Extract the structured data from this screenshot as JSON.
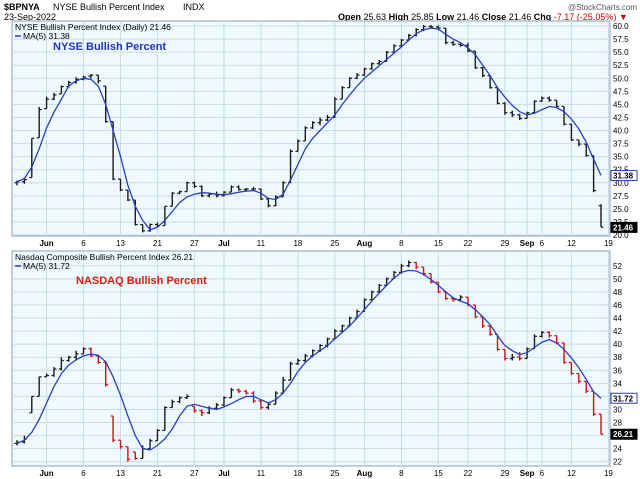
{
  "header": {
    "symbol": "$BPNYA",
    "name": "NYSE Bullish Percent Index",
    "exchange": "INDX",
    "date": "23-Sep-2022",
    "open_label": "Open",
    "open": "25.63",
    "high_label": "High",
    "high": "25.85",
    "low_label": "Low",
    "low": "21.46",
    "close_label": "Close",
    "close": "21.46",
    "chg_label": "Chg",
    "chg": "-7.17 (-25.05%)",
    "arrow": "▼",
    "watermark": "@StockCharts.com"
  },
  "colors": {
    "panel_bg": "#eefaff",
    "grid": "#c9dbe6",
    "border": "#8aa0b0",
    "ma_line": "#2b3fbf",
    "up_bar": "#1a1a1a",
    "down_bar_panel1": "#1a1a1a",
    "down_bar_panel2": "#cc1111",
    "title_blue": "#1d33c8",
    "title_red": "#d81f0c",
    "neg": "#cc0000"
  },
  "chart_data": [
    {
      "type": "ohlc",
      "title": "NYSE Bullish Percent",
      "legend": [
        "NYSE Bullish Percent Index (Daily) 21.46",
        "MA(5) 31.38"
      ],
      "x_tick_labels": [
        "Jun",
        "6",
        "13",
        "21",
        "27",
        "Jul",
        "11",
        "18",
        "25",
        "Aug",
        "8",
        "15",
        "22",
        "29",
        "Sep",
        "6",
        "12",
        "19"
      ],
      "ylim": [
        20,
        60
      ],
      "y_ticks": [
        "20.0",
        "22.5",
        "25.0",
        "27.5",
        "30.0",
        "32.5",
        "35.0",
        "37.5",
        "40.0",
        "42.5",
        "45.0",
        "47.5",
        "50.0",
        "52.5",
        "55.0",
        "57.5",
        "60.0"
      ],
      "last_value_tags": [
        {
          "label": "31.38",
          "value": 31.38,
          "style": "outline"
        },
        {
          "label": "21.46",
          "value": 21.46,
          "style": "filled"
        }
      ],
      "bars": [
        [
          30.0,
          30.4,
          29.5,
          30.2
        ],
        [
          30.2,
          31.0,
          29.8,
          30.6
        ],
        [
          31.0,
          38.5,
          31.0,
          38.5
        ],
        [
          38.6,
          44.5,
          38.6,
          44.0
        ],
        [
          44.2,
          46.5,
          44.2,
          46.0
        ],
        [
          46.0,
          47.2,
          45.8,
          46.8
        ],
        [
          47.0,
          48.6,
          47.0,
          48.4
        ],
        [
          48.4,
          49.5,
          48.2,
          49.2
        ],
        [
          49.2,
          50.2,
          49.0,
          49.8
        ],
        [
          49.8,
          50.5,
          49.6,
          50.2
        ],
        [
          50.4,
          50.8,
          50.0,
          50.6
        ],
        [
          50.6,
          50.6,
          49.0,
          49.5
        ],
        [
          48.5,
          48.5,
          41.5,
          41.7
        ],
        [
          41.7,
          41.7,
          30.5,
          30.7
        ],
        [
          30.7,
          30.7,
          28.4,
          28.6
        ],
        [
          28.6,
          28.6,
          26.5,
          26.7
        ],
        [
          26.7,
          26.7,
          21.8,
          22.0
        ],
        [
          22.0,
          22.0,
          20.5,
          20.8
        ],
        [
          20.8,
          22.2,
          20.6,
          22.0
        ],
        [
          22.0,
          22.4,
          21.5,
          21.8
        ],
        [
          21.8,
          25.5,
          21.8,
          25.5
        ],
        [
          25.5,
          28.2,
          25.5,
          28.0
        ],
        [
          28.0,
          28.5,
          27.8,
          28.3
        ],
        [
          28.3,
          30.2,
          28.3,
          30.0
        ],
        [
          30.0,
          30.2,
          29.0,
          29.3
        ],
        [
          29.3,
          29.5,
          27.3,
          27.5
        ],
        [
          27.5,
          28.0,
          27.2,
          27.8
        ],
        [
          27.8,
          28.3,
          27.2,
          27.5
        ],
        [
          27.5,
          28.4,
          27.4,
          28.2
        ],
        [
          28.2,
          29.5,
          28.2,
          29.2
        ],
        [
          29.2,
          29.5,
          28.5,
          28.7
        ],
        [
          28.7,
          29.0,
          28.3,
          28.8
        ],
        [
          28.8,
          29.2,
          28.5,
          28.8
        ],
        [
          28.8,
          28.9,
          26.7,
          26.9
        ],
        [
          26.9,
          27.0,
          25.3,
          25.6
        ],
        [
          25.6,
          27.6,
          25.5,
          27.3
        ],
        [
          27.3,
          30.3,
          27.3,
          30.0
        ],
        [
          30.0,
          36.4,
          30.0,
          36.0
        ],
        [
          36.0,
          38.3,
          36.0,
          38.0
        ],
        [
          38.0,
          40.8,
          38.0,
          40.5
        ],
        [
          40.5,
          41.8,
          40.3,
          41.5
        ],
        [
          41.5,
          42.5,
          41.0,
          42.0
        ],
        [
          42.0,
          43.0,
          41.8,
          42.5
        ],
        [
          42.5,
          46.4,
          42.5,
          46.0
        ],
        [
          46.0,
          48.5,
          46.0,
          48.2
        ],
        [
          48.2,
          50.2,
          48.2,
          50.0
        ],
        [
          50.0,
          51.0,
          49.8,
          50.6
        ],
        [
          50.6,
          52.0,
          50.4,
          51.8
        ],
        [
          51.8,
          53.0,
          51.6,
          52.8
        ],
        [
          52.8,
          53.5,
          52.6,
          53.2
        ],
        [
          53.2,
          55.2,
          53.2,
          55.0
        ],
        [
          55.0,
          56.5,
          55.0,
          56.2
        ],
        [
          56.2,
          57.5,
          56.2,
          57.3
        ],
        [
          57.3,
          58.5,
          57.1,
          58.2
        ],
        [
          58.2,
          59.6,
          58.0,
          59.3
        ],
        [
          59.3,
          60.2,
          59.0,
          59.9
        ],
        [
          59.9,
          60.2,
          59.5,
          59.8
        ],
        [
          59.8,
          60.1,
          59.2,
          59.6
        ],
        [
          59.6,
          59.6,
          56.5,
          56.8
        ],
        [
          56.8,
          57.2,
          56.2,
          56.5
        ],
        [
          56.5,
          56.8,
          56.0,
          56.3
        ],
        [
          56.3,
          56.8,
          55.0,
          55.2
        ],
        [
          55.2,
          55.2,
          51.8,
          52.0
        ],
        [
          52.0,
          52.2,
          50.2,
          50.5
        ],
        [
          50.5,
          50.6,
          48.0,
          48.2
        ],
        [
          48.2,
          48.2,
          45.0,
          45.2
        ],
        [
          45.2,
          45.4,
          43.0,
          43.4
        ],
        [
          43.4,
          43.8,
          42.6,
          43.0
        ],
        [
          43.0,
          43.2,
          42.0,
          42.3
        ],
        [
          42.3,
          43.6,
          42.3,
          43.4
        ],
        [
          43.4,
          45.8,
          43.4,
          45.6
        ],
        [
          45.6,
          46.5,
          45.5,
          46.2
        ],
        [
          46.2,
          46.5,
          45.5,
          45.8
        ],
        [
          45.8,
          45.8,
          44.3,
          44.6
        ],
        [
          44.6,
          44.6,
          41.0,
          41.2
        ],
        [
          41.2,
          41.2,
          38.0,
          38.2
        ],
        [
          38.2,
          38.2,
          37.0,
          37.4
        ],
        [
          37.4,
          37.4,
          35.0,
          35.2
        ],
        [
          35.2,
          35.2,
          28.2,
          28.5
        ],
        [
          25.6,
          25.9,
          21.5,
          21.5
        ]
      ],
      "ma_values": [
        30.2,
        30.8,
        33.0,
        36.5,
        40.5,
        43.5,
        46.0,
        48.5,
        49.5,
        50.0,
        49.8,
        48.5,
        45.0,
        40.0,
        35.0,
        29.5,
        25.5,
        22.8,
        21.0,
        21.5,
        22.8,
        24.5,
        26.2,
        27.3,
        27.8,
        28.1,
        28.0,
        27.8,
        27.7,
        27.9,
        28.2,
        28.4,
        28.5,
        28.0,
        27.0,
        26.8,
        27.8,
        30.5,
        33.5,
        36.5,
        38.5,
        40.0,
        41.5,
        43.0,
        45.0,
        46.8,
        48.5,
        50.0,
        51.2,
        52.4,
        53.6,
        54.8,
        56.0,
        57.3,
        58.5,
        59.3,
        59.6,
        59.4,
        58.4,
        57.5,
        56.8,
        55.8,
        54.5,
        52.5,
        50.5,
        48.2,
        46.4,
        44.8,
        43.6,
        43.0,
        43.3,
        44.0,
        44.6,
        44.4,
        43.6,
        42.2,
        40.3,
        37.8,
        34.5,
        31.4
      ]
    },
    {
      "type": "ohlc",
      "title": "NASDAQ Bullish Percent",
      "legend": [
        "Nasdaq Composite Bullish Percent Index 26.21",
        "MA(5) 31.72"
      ],
      "x_tick_labels": [
        "Jun",
        "6",
        "13",
        "21",
        "27",
        "Jul",
        "11",
        "18",
        "25",
        "Aug",
        "8",
        "15",
        "22",
        "29",
        "Sep",
        "6",
        "12",
        "19"
      ],
      "ylim": [
        21.5,
        53.5
      ],
      "y_ticks": [
        "22",
        "24",
        "26",
        "28",
        "30",
        "32",
        "34",
        "36",
        "38",
        "40",
        "42",
        "44",
        "46",
        "48",
        "50",
        "52"
      ],
      "last_value_tags": [
        {
          "label": "31.72",
          "value": 31.72,
          "style": "outline"
        },
        {
          "label": "26.21",
          "value": 26.21,
          "style": "filled"
        }
      ],
      "bars": [
        [
          24.8,
          25.3,
          24.5,
          25.0
        ],
        [
          25.0,
          26.0,
          24.8,
          25.5
        ],
        [
          29.5,
          32.0,
          29.5,
          32.0
        ],
        [
          32.0,
          35.0,
          32.0,
          35.0
        ],
        [
          35.0,
          35.5,
          35.0,
          35.2
        ],
        [
          35.2,
          36.5,
          35.0,
          36.2
        ],
        [
          36.2,
          38.0,
          36.0,
          37.5
        ],
        [
          37.5,
          38.2,
          37.3,
          38.0
        ],
        [
          38.0,
          39.0,
          37.5,
          38.5
        ],
        [
          38.5,
          39.5,
          38.5,
          39.3
        ],
        [
          39.3,
          39.5,
          38.0,
          38.2
        ],
        [
          38.2,
          38.2,
          37.0,
          37.2
        ],
        [
          37.2,
          37.2,
          33.5,
          33.8
        ],
        [
          29.0,
          29.0,
          25.0,
          25.3
        ],
        [
          25.3,
          25.3,
          24.0,
          24.3
        ],
        [
          24.3,
          24.3,
          22.0,
          22.4
        ],
        [
          23.5,
          23.5,
          22.3,
          22.5
        ],
        [
          22.5,
          24.5,
          22.5,
          24.0
        ],
        [
          24.0,
          25.5,
          24.0,
          25.2
        ],
        [
          25.2,
          27.0,
          25.2,
          26.8
        ],
        [
          26.8,
          30.5,
          26.8,
          30.3
        ],
        [
          30.3,
          31.5,
          30.3,
          31.2
        ],
        [
          31.2,
          32.0,
          31.0,
          31.8
        ],
        [
          31.8,
          32.3,
          31.6,
          32.0
        ],
        [
          30.5,
          30.5,
          29.5,
          29.8
        ],
        [
          29.8,
          30.0,
          29.0,
          29.5
        ],
        [
          29.5,
          30.5,
          29.3,
          30.2
        ],
        [
          30.2,
          31.0,
          30.0,
          30.7
        ],
        [
          30.7,
          32.0,
          30.5,
          31.8
        ],
        [
          31.8,
          33.3,
          31.8,
          33.0
        ],
        [
          33.0,
          33.2,
          32.5,
          32.8
        ],
        [
          32.8,
          33.0,
          32.3,
          32.5
        ],
        [
          32.5,
          32.8,
          31.0,
          31.3
        ],
        [
          31.3,
          31.5,
          30.0,
          30.3
        ],
        [
          30.3,
          31.0,
          30.0,
          30.8
        ],
        [
          30.8,
          32.8,
          30.8,
          32.5
        ],
        [
          32.5,
          35.0,
          32.5,
          34.5
        ],
        [
          34.5,
          37.3,
          34.5,
          37.0
        ],
        [
          37.0,
          37.8,
          36.8,
          37.5
        ],
        [
          37.5,
          38.5,
          37.2,
          38.2
        ],
        [
          38.2,
          39.2,
          38.0,
          39.0
        ],
        [
          39.0,
          40.0,
          38.8,
          39.8
        ],
        [
          39.8,
          41.0,
          39.5,
          40.8
        ],
        [
          40.8,
          42.3,
          40.8,
          42.0
        ],
        [
          42.0,
          43.0,
          41.8,
          42.8
        ],
        [
          42.8,
          44.2,
          42.8,
          44.0
        ],
        [
          44.0,
          45.3,
          44.0,
          45.0
        ],
        [
          45.0,
          47.0,
          45.0,
          46.8
        ],
        [
          46.8,
          48.2,
          46.8,
          48.0
        ],
        [
          48.0,
          49.2,
          47.8,
          49.0
        ],
        [
          49.0,
          50.2,
          49.0,
          50.0
        ],
        [
          50.0,
          51.2,
          50.0,
          51.0
        ],
        [
          51.0,
          52.3,
          50.8,
          52.0
        ],
        [
          52.0,
          52.8,
          51.8,
          52.5
        ],
        [
          52.5,
          52.6,
          51.5,
          51.8
        ],
        [
          51.8,
          51.8,
          50.5,
          50.8
        ],
        [
          50.8,
          50.8,
          49.3,
          49.5
        ],
        [
          49.5,
          49.5,
          47.8,
          48.0
        ],
        [
          48.0,
          48.0,
          46.8,
          47.0
        ],
        [
          47.0,
          47.2,
          46.5,
          46.8
        ],
        [
          46.8,
          47.5,
          46.5,
          47.2
        ],
        [
          47.2,
          47.2,
          45.8,
          46.0
        ],
        [
          46.0,
          46.0,
          44.0,
          44.2
        ],
        [
          44.2,
          44.2,
          42.5,
          42.8
        ],
        [
          42.8,
          42.8,
          41.3,
          41.5
        ],
        [
          41.5,
          41.5,
          39.0,
          39.2
        ],
        [
          39.2,
          39.2,
          37.5,
          37.8
        ],
        [
          37.8,
          38.5,
          37.5,
          38.0
        ],
        [
          38.0,
          38.8,
          37.5,
          37.8
        ],
        [
          37.8,
          39.5,
          37.8,
          39.3
        ],
        [
          39.3,
          41.5,
          39.3,
          41.2
        ],
        [
          41.2,
          42.0,
          41.0,
          41.8
        ],
        [
          41.8,
          42.0,
          41.0,
          41.3
        ],
        [
          41.3,
          41.3,
          40.0,
          40.2
        ],
        [
          40.2,
          40.2,
          37.0,
          37.2
        ],
        [
          37.2,
          37.2,
          35.3,
          35.5
        ],
        [
          35.5,
          35.5,
          34.0,
          34.3
        ],
        [
          34.3,
          34.3,
          32.5,
          32.8
        ],
        [
          32.8,
          32.8,
          29.0,
          29.3
        ],
        [
          29.3,
          29.3,
          26.2,
          26.2
        ]
      ],
      "ma_values": [
        24.8,
        25.3,
        26.5,
        28.5,
        31.0,
        33.5,
        35.5,
        36.8,
        37.6,
        38.2,
        38.5,
        38.3,
        37.3,
        35.0,
        32.2,
        29.0,
        26.0,
        24.0,
        23.8,
        24.5,
        25.5,
        27.0,
        29.0,
        30.5,
        30.8,
        30.5,
        30.2,
        30.0,
        30.4,
        30.9,
        31.5,
        32.0,
        32.0,
        31.5,
        31.0,
        31.5,
        32.5,
        34.0,
        35.8,
        37.2,
        38.2,
        39.0,
        39.8,
        40.8,
        41.8,
        42.8,
        44.0,
        45.3,
        46.6,
        47.8,
        49.0,
        50.1,
        51.0,
        51.3,
        51.2,
        50.7,
        49.9,
        49.0,
        48.0,
        47.1,
        46.6,
        46.2,
        45.3,
        44.2,
        43.0,
        41.3,
        39.8,
        39.0,
        38.4,
        38.7,
        39.5,
        40.3,
        40.7,
        40.2,
        39.2,
        37.9,
        36.4,
        34.6,
        32.7,
        31.7
      ]
    }
  ]
}
